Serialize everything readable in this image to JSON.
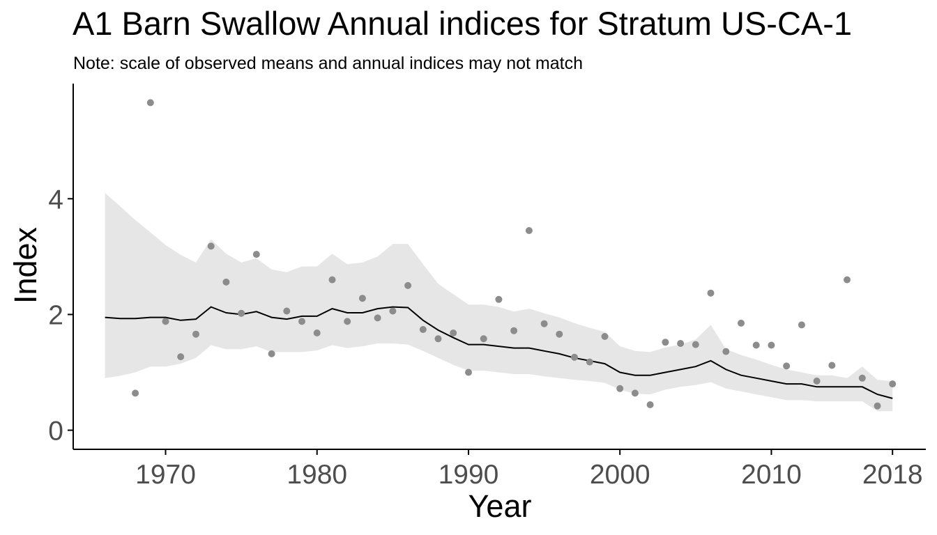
{
  "chart_data": {
    "type": "line",
    "title": "A1 Barn Swallow Annual indices for Stratum US-CA-1",
    "subtitle": "Note: scale of observed means and annual indices may not match",
    "xlabel": "Year",
    "ylabel": "Index",
    "xlim": [
      1963.9,
      2020.2
    ],
    "ylim": [
      -0.33,
      5.99
    ],
    "x_ticks": [
      1970,
      1980,
      1990,
      2000,
      2010,
      2018
    ],
    "y_ticks": [
      0,
      2,
      4
    ],
    "grid": false,
    "legend": "none",
    "colors": {
      "ribbon": "#e6e6e6",
      "line": "#000000",
      "points": "#8c8c8c",
      "axis": "#000000",
      "tick_text": "#4d4d4d"
    },
    "series": [
      {
        "kind": "ribbon",
        "x": [
          1966,
          1967,
          1968,
          1969,
          1970,
          1971,
          1972,
          1973,
          1974,
          1975,
          1976,
          1977,
          1978,
          1979,
          1980,
          1981,
          1982,
          1983,
          1984,
          1985,
          1986,
          1987,
          1988,
          1989,
          1990,
          1991,
          1992,
          1993,
          1994,
          1995,
          1996,
          1997,
          1998,
          1999,
          2000,
          2001,
          2002,
          2003,
          2004,
          2005,
          2006,
          2007,
          2008,
          2009,
          2010,
          2011,
          2012,
          2013,
          2014,
          2015,
          2016,
          2017,
          2018
        ],
        "lower": [
          0.9,
          0.94,
          1.0,
          1.1,
          1.1,
          1.15,
          1.25,
          1.47,
          1.4,
          1.4,
          1.45,
          1.35,
          1.35,
          1.35,
          1.38,
          1.47,
          1.42,
          1.45,
          1.5,
          1.5,
          1.48,
          1.37,
          1.25,
          1.13,
          1.03,
          1.03,
          1.0,
          0.97,
          0.97,
          0.93,
          0.9,
          0.87,
          0.85,
          0.82,
          0.7,
          0.63,
          0.62,
          0.7,
          0.75,
          0.78,
          0.83,
          0.72,
          0.67,
          0.62,
          0.57,
          0.52,
          0.52,
          0.5,
          0.5,
          0.5,
          0.5,
          0.33,
          0.33
        ],
        "upper": [
          4.1,
          3.87,
          3.63,
          3.42,
          3.2,
          3.03,
          2.9,
          3.3,
          3.05,
          2.9,
          2.97,
          2.78,
          2.73,
          2.83,
          2.83,
          3.05,
          2.87,
          2.9,
          3.0,
          3.22,
          3.22,
          2.87,
          2.53,
          2.35,
          2.17,
          2.17,
          2.13,
          2.05,
          2.1,
          2.02,
          1.95,
          1.85,
          1.77,
          1.7,
          1.45,
          1.37,
          1.35,
          1.43,
          1.48,
          1.57,
          1.82,
          1.4,
          1.3,
          1.22,
          1.13,
          1.05,
          1.0,
          0.95,
          0.95,
          0.9,
          1.1,
          0.87,
          0.85
        ]
      },
      {
        "kind": "line",
        "x": [
          1966,
          1967,
          1968,
          1969,
          1970,
          1971,
          1972,
          1973,
          1974,
          1975,
          1976,
          1977,
          1978,
          1979,
          1980,
          1981,
          1982,
          1983,
          1984,
          1985,
          1986,
          1987,
          1988,
          1989,
          1990,
          1991,
          1992,
          1993,
          1994,
          1995,
          1996,
          1997,
          1998,
          1999,
          2000,
          2001,
          2002,
          2003,
          2004,
          2005,
          2006,
          2007,
          2008,
          2009,
          2010,
          2011,
          2012,
          2013,
          2014,
          2015,
          2016,
          2017,
          2018
        ],
        "values": [
          1.95,
          1.93,
          1.93,
          1.95,
          1.95,
          1.9,
          1.92,
          2.13,
          2.03,
          2.0,
          2.05,
          1.95,
          1.92,
          1.97,
          1.97,
          2.1,
          2.03,
          2.03,
          2.1,
          2.13,
          2.12,
          1.9,
          1.73,
          1.6,
          1.48,
          1.48,
          1.45,
          1.42,
          1.42,
          1.37,
          1.32,
          1.25,
          1.2,
          1.15,
          1.0,
          0.95,
          0.95,
          1.0,
          1.05,
          1.1,
          1.2,
          1.05,
          0.95,
          0.9,
          0.85,
          0.8,
          0.8,
          0.75,
          0.75,
          0.75,
          0.75,
          0.62,
          0.55
        ]
      },
      {
        "kind": "points",
        "x": [
          1968,
          1969,
          1970,
          1971,
          1972,
          1973,
          1974,
          1975,
          1976,
          1977,
          1978,
          1979,
          1980,
          1981,
          1982,
          1983,
          1984,
          1985,
          1986,
          1987,
          1988,
          1989,
          1990,
          1991,
          1992,
          1993,
          1994,
          1995,
          1996,
          1997,
          1998,
          1999,
          2000,
          2001,
          2002,
          2003,
          2004,
          2005,
          2006,
          2007,
          2008,
          2009,
          2010,
          2011,
          2012,
          2013,
          2014,
          2015,
          2016,
          2017,
          2018
        ],
        "values": [
          0.64,
          5.66,
          1.88,
          1.27,
          1.66,
          3.18,
          2.56,
          2.02,
          3.04,
          1.32,
          2.06,
          1.88,
          1.68,
          2.6,
          1.88,
          2.28,
          1.94,
          2.06,
          2.5,
          1.74,
          1.58,
          1.68,
          1.0,
          1.58,
          2.26,
          1.72,
          3.45,
          1.84,
          1.66,
          1.26,
          1.18,
          1.62,
          0.72,
          0.64,
          0.44,
          1.52,
          1.5,
          1.48,
          2.37,
          1.36,
          1.85,
          1.47,
          1.47,
          1.11,
          1.82,
          0.85,
          1.12,
          2.6,
          0.9,
          0.42,
          0.8
        ]
      }
    ]
  }
}
